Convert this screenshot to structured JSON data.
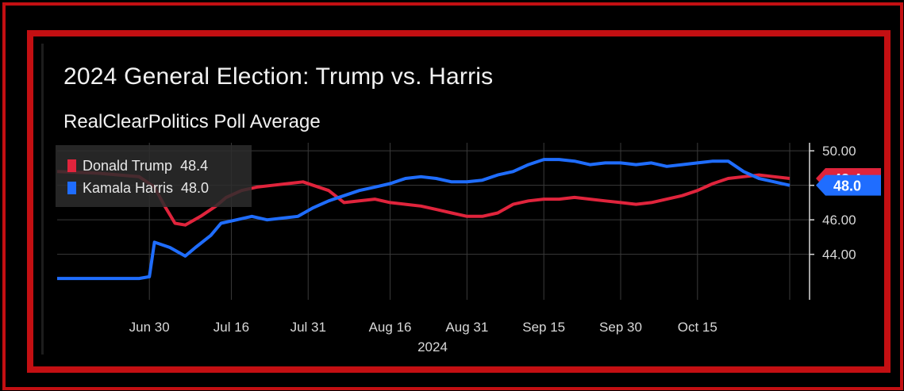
{
  "colors": {
    "frame": "#c30f12",
    "trump": "#e0243c",
    "harris": "#1f6dff",
    "grid": "#3a3a3a"
  },
  "chart_data": {
    "type": "line",
    "title": "2024 General Election: Trump vs. Harris",
    "subtitle": "RealClearPolitics Poll Average",
    "xlabel": "2024",
    "x_ticks": [
      "Jun 30",
      "Jul 16",
      "Jul 31",
      "Aug 16",
      "Aug 31",
      "Sep 15",
      "Sep 30",
      "Oct 15"
    ],
    "x_range": [
      "2024-06-12",
      "2024-11-02"
    ],
    "y_ticks": [
      "50.00",
      "48.00",
      "46.00",
      "44.00"
    ],
    "ylim": [
      42.1,
      50.1
    ],
    "grid": true,
    "legend_position": "top-left",
    "series": [
      {
        "name": "Donald Trump",
        "last_value": "48.4",
        "color": "#e0243c",
        "points": [
          [
            "2024-06-12",
            48.8
          ],
          [
            "2024-06-20",
            48.7
          ],
          [
            "2024-06-28",
            48.5
          ],
          [
            "2024-07-01",
            47.9
          ],
          [
            "2024-07-03",
            46.8
          ],
          [
            "2024-07-05",
            45.8
          ],
          [
            "2024-07-07",
            45.7
          ],
          [
            "2024-07-10",
            46.2
          ],
          [
            "2024-07-13",
            46.8
          ],
          [
            "2024-07-15",
            47.3
          ],
          [
            "2024-07-18",
            47.7
          ],
          [
            "2024-07-21",
            47.9
          ],
          [
            "2024-07-24",
            48.0
          ],
          [
            "2024-07-27",
            48.1
          ],
          [
            "2024-07-30",
            48.2
          ],
          [
            "2024-08-01",
            48.0
          ],
          [
            "2024-08-04",
            47.7
          ],
          [
            "2024-08-07",
            47.0
          ],
          [
            "2024-08-10",
            47.1
          ],
          [
            "2024-08-13",
            47.2
          ],
          [
            "2024-08-16",
            47.0
          ],
          [
            "2024-08-19",
            46.9
          ],
          [
            "2024-08-22",
            46.8
          ],
          [
            "2024-08-25",
            46.6
          ],
          [
            "2024-08-28",
            46.4
          ],
          [
            "2024-08-31",
            46.2
          ],
          [
            "2024-09-03",
            46.2
          ],
          [
            "2024-09-06",
            46.4
          ],
          [
            "2024-09-09",
            46.9
          ],
          [
            "2024-09-12",
            47.1
          ],
          [
            "2024-09-15",
            47.2
          ],
          [
            "2024-09-18",
            47.2
          ],
          [
            "2024-09-21",
            47.3
          ],
          [
            "2024-09-24",
            47.2
          ],
          [
            "2024-09-27",
            47.1
          ],
          [
            "2024-09-30",
            47.0
          ],
          [
            "2024-10-03",
            46.9
          ],
          [
            "2024-10-06",
            47.0
          ],
          [
            "2024-10-09",
            47.2
          ],
          [
            "2024-10-12",
            47.4
          ],
          [
            "2024-10-15",
            47.7
          ],
          [
            "2024-10-18",
            48.1
          ],
          [
            "2024-10-21",
            48.4
          ],
          [
            "2024-10-24",
            48.5
          ],
          [
            "2024-10-27",
            48.6
          ],
          [
            "2024-10-30",
            48.5
          ],
          [
            "2024-11-02",
            48.4
          ]
        ]
      },
      {
        "name": "Kamala Harris",
        "last_value": "48.0",
        "color": "#1f6dff",
        "points": [
          [
            "2024-06-12",
            42.6
          ],
          [
            "2024-06-28",
            42.6
          ],
          [
            "2024-06-30",
            42.7
          ],
          [
            "2024-07-01",
            44.7
          ],
          [
            "2024-07-04",
            44.4
          ],
          [
            "2024-07-07",
            43.9
          ],
          [
            "2024-07-09",
            44.4
          ],
          [
            "2024-07-12",
            45.1
          ],
          [
            "2024-07-14",
            45.8
          ],
          [
            "2024-07-17",
            46.0
          ],
          [
            "2024-07-20",
            46.2
          ],
          [
            "2024-07-23",
            46.0
          ],
          [
            "2024-07-26",
            46.1
          ],
          [
            "2024-07-29",
            46.2
          ],
          [
            "2024-08-01",
            46.7
          ],
          [
            "2024-08-04",
            47.1
          ],
          [
            "2024-08-07",
            47.4
          ],
          [
            "2024-08-10",
            47.7
          ],
          [
            "2024-08-13",
            47.9
          ],
          [
            "2024-08-16",
            48.1
          ],
          [
            "2024-08-19",
            48.4
          ],
          [
            "2024-08-22",
            48.5
          ],
          [
            "2024-08-25",
            48.4
          ],
          [
            "2024-08-28",
            48.2
          ],
          [
            "2024-08-31",
            48.2
          ],
          [
            "2024-09-03",
            48.3
          ],
          [
            "2024-09-06",
            48.6
          ],
          [
            "2024-09-09",
            48.8
          ],
          [
            "2024-09-12",
            49.2
          ],
          [
            "2024-09-15",
            49.5
          ],
          [
            "2024-09-18",
            49.5
          ],
          [
            "2024-09-21",
            49.4
          ],
          [
            "2024-09-24",
            49.2
          ],
          [
            "2024-09-27",
            49.3
          ],
          [
            "2024-09-30",
            49.3
          ],
          [
            "2024-10-03",
            49.2
          ],
          [
            "2024-10-06",
            49.3
          ],
          [
            "2024-10-09",
            49.1
          ],
          [
            "2024-10-12",
            49.2
          ],
          [
            "2024-10-15",
            49.3
          ],
          [
            "2024-10-18",
            49.4
          ],
          [
            "2024-10-21",
            49.4
          ],
          [
            "2024-10-24",
            48.8
          ],
          [
            "2024-10-27",
            48.4
          ],
          [
            "2024-10-30",
            48.2
          ],
          [
            "2024-11-02",
            48.0
          ]
        ]
      }
    ]
  }
}
